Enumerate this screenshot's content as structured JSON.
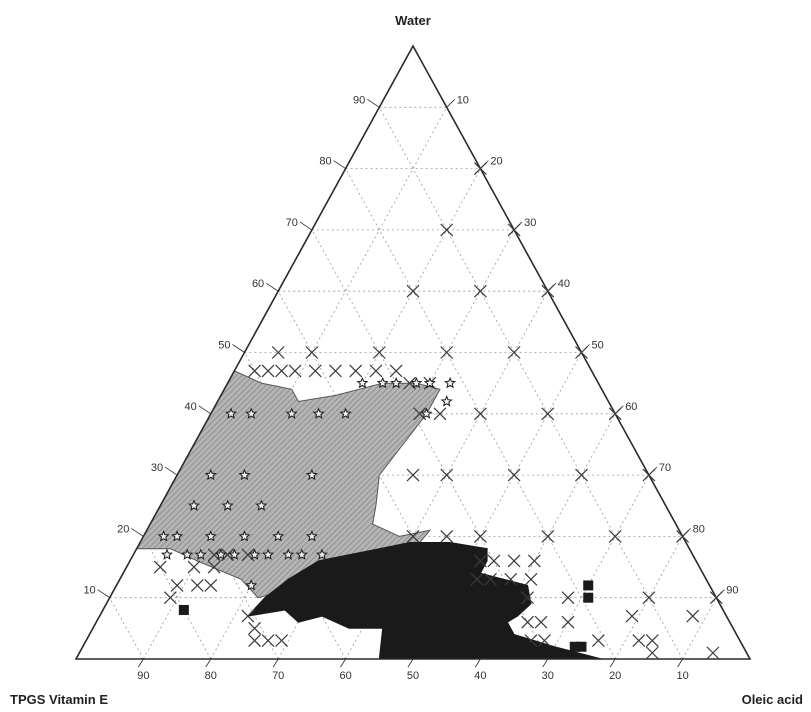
{
  "chart_data": {
    "type": "ternary-scatter",
    "vertices": {
      "top": "Water",
      "bottom_left": "TPGS Vitamin E",
      "bottom_right": "Oleic acid"
    },
    "ticks": [
      10,
      20,
      30,
      40,
      50,
      60,
      70,
      80,
      90
    ],
    "grid": true,
    "colors": {
      "frame": "#2a2a2a",
      "grid": "#9a9a9a",
      "marker_x": "#3a3a3a",
      "region_hatched": "#8f8f8f",
      "region_dark": "#1a1a1a",
      "star": "#1a1a1a"
    },
    "series": [
      {
        "marker": "x",
        "points": [
          {
            "water": 80,
            "oleic": 20
          },
          {
            "water": 70,
            "oleic": 30
          },
          {
            "water": 70,
            "oleic": 20
          },
          {
            "water": 60,
            "oleic": 40
          },
          {
            "water": 60,
            "oleic": 30
          },
          {
            "water": 60,
            "oleic": 20
          },
          {
            "water": 50,
            "oleic": 50
          },
          {
            "water": 50,
            "oleic": 40
          },
          {
            "water": 50,
            "oleic": 30
          },
          {
            "water": 50,
            "oleic": 20
          },
          {
            "water": 50,
            "oleic": 10
          },
          {
            "water": 50,
            "oleic": 5
          },
          {
            "water": 47,
            "oleic": 3
          },
          {
            "water": 47,
            "oleic": 5
          },
          {
            "water": 47,
            "oleic": 7
          },
          {
            "water": 47,
            "oleic": 9
          },
          {
            "water": 47,
            "oleic": 12
          },
          {
            "water": 47,
            "oleic": 15
          },
          {
            "water": 47,
            "oleic": 18
          },
          {
            "water": 47,
            "oleic": 21
          },
          {
            "water": 47,
            "oleic": 24
          },
          {
            "water": 45,
            "oleic": 27
          },
          {
            "water": 45,
            "oleic": 30
          },
          {
            "water": 40,
            "oleic": 60
          },
          {
            "water": 40,
            "oleic": 50
          },
          {
            "water": 40,
            "oleic": 40
          },
          {
            "water": 40,
            "oleic": 34
          },
          {
            "water": 40,
            "oleic": 31
          },
          {
            "water": 30,
            "oleic": 70
          },
          {
            "water": 30,
            "oleic": 60
          },
          {
            "water": 30,
            "oleic": 50
          },
          {
            "water": 30,
            "oleic": 40
          },
          {
            "water": 30,
            "oleic": 35
          },
          {
            "water": 20,
            "oleic": 80
          },
          {
            "water": 20,
            "oleic": 70
          },
          {
            "water": 20,
            "oleic": 60
          },
          {
            "water": 20,
            "oleic": 50
          },
          {
            "water": 20,
            "oleic": 45
          },
          {
            "water": 20,
            "oleic": 40
          },
          {
            "water": 16,
            "oleic": 52
          },
          {
            "water": 16,
            "oleic": 54
          },
          {
            "water": 16,
            "oleic": 57
          },
          {
            "water": 16,
            "oleic": 60
          },
          {
            "water": 13,
            "oleic": 53
          },
          {
            "water": 13,
            "oleic": 55
          },
          {
            "water": 13,
            "oleic": 58
          },
          {
            "water": 13,
            "oleic": 61
          },
          {
            "water": 17,
            "oleic": 12
          },
          {
            "water": 17,
            "oleic": 14
          },
          {
            "water": 17,
            "oleic": 17
          },
          {
            "water": 15,
            "oleic": 5
          },
          {
            "water": 15,
            "oleic": 10
          },
          {
            "water": 15,
            "oleic": 13
          },
          {
            "water": 12,
            "oleic": 9
          },
          {
            "water": 12,
            "oleic": 12
          },
          {
            "water": 12,
            "oleic": 14
          },
          {
            "water": 10,
            "oleic": 9
          },
          {
            "water": 10,
            "oleic": 90
          },
          {
            "water": 10,
            "oleic": 80
          },
          {
            "water": 10,
            "oleic": 68
          },
          {
            "water": 10,
            "oleic": 62
          },
          {
            "water": 6,
            "oleic": 70
          },
          {
            "water": 6,
            "oleic": 64
          },
          {
            "water": 6,
            "oleic": 66
          },
          {
            "water": 3,
            "oleic": 66
          },
          {
            "water": 3,
            "oleic": 68
          },
          {
            "water": 3,
            "oleic": 82
          },
          {
            "water": 3,
            "oleic": 84
          },
          {
            "water": 3,
            "oleic": 76
          },
          {
            "water": 7,
            "oleic": 79
          },
          {
            "water": 7,
            "oleic": 88
          },
          {
            "water": 1,
            "oleic": 85
          },
          {
            "water": 1,
            "oleic": 94
          },
          {
            "water": 7,
            "oleic": 22
          },
          {
            "water": 5,
            "oleic": 24
          },
          {
            "water": 3,
            "oleic": 25
          },
          {
            "water": 3,
            "oleic": 27
          },
          {
            "water": 3,
            "oleic": 29
          }
        ]
      },
      {
        "marker": "star",
        "points": [
          {
            "water": 40,
            "oleic": 3
          },
          {
            "water": 40,
            "oleic": 6
          },
          {
            "water": 40,
            "oleic": 12
          },
          {
            "water": 40,
            "oleic": 16
          },
          {
            "water": 40,
            "oleic": 20
          },
          {
            "water": 30,
            "oleic": 5
          },
          {
            "water": 30,
            "oleic": 10
          },
          {
            "water": 30,
            "oleic": 20
          },
          {
            "water": 25,
            "oleic": 5
          },
          {
            "water": 25,
            "oleic": 10
          },
          {
            "water": 25,
            "oleic": 15
          },
          {
            "water": 20,
            "oleic": 3
          },
          {
            "water": 20,
            "oleic": 5
          },
          {
            "water": 20,
            "oleic": 10
          },
          {
            "water": 20,
            "oleic": 15
          },
          {
            "water": 20,
            "oleic": 20
          },
          {
            "water": 20,
            "oleic": 25
          },
          {
            "water": 17,
            "oleic": 5
          },
          {
            "water": 17,
            "oleic": 8
          },
          {
            "water": 17,
            "oleic": 10
          },
          {
            "water": 17,
            "oleic": 13
          },
          {
            "water": 17,
            "oleic": 15
          },
          {
            "water": 17,
            "oleic": 18
          },
          {
            "water": 17,
            "oleic": 20
          },
          {
            "water": 17,
            "oleic": 23
          },
          {
            "water": 17,
            "oleic": 25
          },
          {
            "water": 17,
            "oleic": 28
          },
          {
            "water": 12,
            "oleic": 20
          },
          {
            "water": 45,
            "oleic": 20
          },
          {
            "water": 45,
            "oleic": 23
          },
          {
            "water": 45,
            "oleic": 25
          },
          {
            "water": 45,
            "oleic": 28
          },
          {
            "water": 45,
            "oleic": 30
          },
          {
            "water": 45,
            "oleic": 33
          },
          {
            "water": 42,
            "oleic": 34
          },
          {
            "water": 40,
            "oleic": 32
          }
        ]
      },
      {
        "marker": "square",
        "points": [
          {
            "water": 12,
            "oleic": 70
          },
          {
            "water": 10,
            "oleic": 71
          },
          {
            "water": 8,
            "oleic": 12
          },
          {
            "water": 6,
            "oleic": 40
          },
          {
            "water": 2,
            "oleic": 66
          },
          {
            "water": 2,
            "oleic": 73
          },
          {
            "water": 2,
            "oleic": 74
          }
        ]
      }
    ],
    "regions": [
      {
        "fill": "hatched",
        "boundary": [
          {
            "water": 18,
            "oleic": 0
          },
          {
            "water": 47,
            "oleic": 0
          },
          {
            "water": 45,
            "oleic": 5
          },
          {
            "water": 44,
            "oleic": 10
          },
          {
            "water": 42,
            "oleic": 12
          },
          {
            "water": 43,
            "oleic": 17
          },
          {
            "water": 44,
            "oleic": 20
          },
          {
            "water": 45,
            "oleic": 23
          },
          {
            "water": 45,
            "oleic": 28
          },
          {
            "water": 44,
            "oleic": 32
          },
          {
            "water": 40,
            "oleic": 32
          },
          {
            "water": 35,
            "oleic": 31
          },
          {
            "water": 30,
            "oleic": 30
          },
          {
            "water": 25,
            "oleic": 32
          },
          {
            "water": 22,
            "oleic": 33
          },
          {
            "water": 20,
            "oleic": 38
          },
          {
            "water": 21,
            "oleic": 42
          },
          {
            "water": 17,
            "oleic": 41
          },
          {
            "water": 14,
            "oleic": 34
          },
          {
            "water": 12,
            "oleic": 28
          },
          {
            "water": 10,
            "oleic": 22
          },
          {
            "water": 13,
            "oleic": 18
          },
          {
            "water": 16,
            "oleic": 10
          },
          {
            "water": 18,
            "oleic": 5
          }
        ]
      },
      {
        "fill": "solid-dark",
        "boundary": [
          {
            "water": 7,
            "oleic": 22
          },
          {
            "water": 10,
            "oleic": 23
          },
          {
            "water": 13,
            "oleic": 25
          },
          {
            "water": 16,
            "oleic": 28
          },
          {
            "water": 17,
            "oleic": 32
          },
          {
            "water": 18,
            "oleic": 36
          },
          {
            "water": 19,
            "oleic": 40
          },
          {
            "water": 19,
            "oleic": 46
          },
          {
            "water": 18,
            "oleic": 52
          },
          {
            "water": 16,
            "oleic": 53
          },
          {
            "water": 14,
            "oleic": 53
          },
          {
            "water": 12,
            "oleic": 61
          },
          {
            "water": 9,
            "oleic": 63
          },
          {
            "water": 7,
            "oleic": 62
          },
          {
            "water": 6,
            "oleic": 61
          },
          {
            "water": 4,
            "oleic": 63
          },
          {
            "water": 2,
            "oleic": 70
          },
          {
            "water": 0,
            "oleic": 78
          },
          {
            "water": 0,
            "oleic": 45
          },
          {
            "water": 5,
            "oleic": 43
          },
          {
            "water": 5,
            "oleic": 38
          },
          {
            "water": 7,
            "oleic": 33
          },
          {
            "water": 6,
            "oleic": 30
          },
          {
            "water": 8,
            "oleic": 27
          }
        ]
      }
    ]
  }
}
